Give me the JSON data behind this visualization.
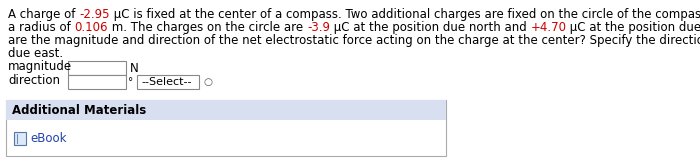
{
  "line1": [
    [
      "A charge of ",
      "#000000"
    ],
    [
      "-2.95",
      "#cc0000"
    ],
    [
      " μC is fixed at the center of a compass. Two additional charges are fixed on the circle of the compass, which has",
      "#000000"
    ]
  ],
  "line2": [
    [
      "a radius of ",
      "#000000"
    ],
    [
      "0.106",
      "#cc0000"
    ],
    [
      " m. The charges on the circle are ",
      "#000000"
    ],
    [
      "-3.9",
      "#cc0000"
    ],
    [
      " μC at the position due north and ",
      "#000000"
    ],
    [
      "+4.70",
      "#cc0000"
    ],
    [
      " μC at the position due east. What",
      "#000000"
    ]
  ],
  "line3": [
    [
      "are the magnitude and direction of the net electrostatic force acting on the charge at the center? Specify the direction relative to",
      "#000000"
    ]
  ],
  "line4": [
    [
      "due east.",
      "#000000"
    ]
  ],
  "row1_label": "magnitude",
  "row1_unit": "N",
  "row2_label": "direction",
  "row2_unit": "°",
  "row2_dropdown": "--Select--",
  "section_label": "Additional Materials",
  "ebook_label": "eBook",
  "bg_color": "#ffffff",
  "section_bg": "#d8dff0",
  "text_color": "#000000",
  "red_color": "#cc0000",
  "font_size": 8.5
}
